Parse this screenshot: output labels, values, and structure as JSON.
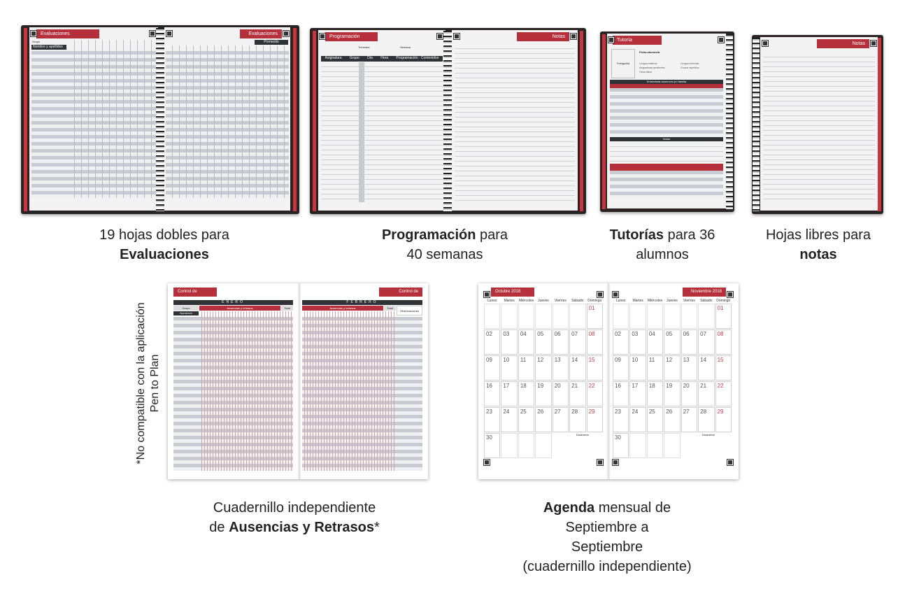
{
  "products": [
    {
      "tab_left": "Evaluaciones",
      "tab_right": "Evaluaciones",
      "sub_headers": [
        "Grupo",
        "Nombre y apellidos",
        "Promedio"
      ],
      "caption_line1": "19 hojas dobles para",
      "caption_bold": "Evaluaciones"
    },
    {
      "tab_left": "Programación",
      "tab_right": "Notas",
      "fields": [
        "Trimestre",
        "Semana"
      ],
      "columns": [
        "Asignatura",
        "Grupo",
        "Día",
        "Hora",
        "Programación · Contenidos"
      ],
      "caption_bold": "Programación",
      "caption_rest": " para",
      "caption_line2": "40 semanas"
    },
    {
      "tab": "Tutoría",
      "photo_label": "Fotografía",
      "name_label": "Ficha alumno/a",
      "fields": [
        "Lengua materna",
        "Lengua vehicular",
        "Asignaturas pendientes",
        "Cursos repetidos",
        "Otros datos"
      ],
      "bar_title": "Entrevistas alumno/a y/o familia",
      "notes_bar": "Notas",
      "caption_bold": "Tutorías",
      "caption_rest": " para 36",
      "caption_line2": "alumnos"
    },
    {
      "tab": "Notas",
      "caption_line1": "Hojas libres para",
      "caption_bold": "notas"
    },
    {
      "tab_left": "Control de Asistencia",
      "tab_right": "Control de Asistencia",
      "month_left": "ENERO",
      "month_right": "FEBRERO",
      "group_label": "Grupo",
      "name_label": "Nombre/a",
      "absences_label": "Ausencias y retrasos",
      "total_label": "Total",
      "obs_label": "Observaciones",
      "caption_line1": "Cuadernillo independiente",
      "caption_pre": "de ",
      "caption_bold": "Ausencias y Retrasos",
      "caption_post": "*"
    },
    {
      "tab_left": "Octubre 2018",
      "tab_right": "Noviembre 2018",
      "minical_title": "Diciembre",
      "days": [
        "Lunes",
        "Martes",
        "Miércoles",
        "Jueves",
        "Viernes",
        "Sábado",
        "Domingo"
      ],
      "dates": [
        "",
        "",
        "",
        "",
        "",
        "",
        "01",
        "02",
        "03",
        "04",
        "05",
        "06",
        "07",
        "08",
        "09",
        "10",
        "11",
        "12",
        "13",
        "14",
        "15",
        "16",
        "17",
        "18",
        "19",
        "20",
        "21",
        "22",
        "23",
        "24",
        "25",
        "26",
        "27",
        "28",
        "29",
        "30",
        "",
        "",
        "",
        "",
        "",
        ""
      ],
      "caption_bold": "Agenda",
      "caption_rest": " mensual de",
      "caption_line2": "Septiembre a",
      "caption_line3": "Septiembre",
      "caption_line4": "(cuadernillo independiente)"
    }
  ],
  "note": "*No compatible con la aplicación",
  "note_line2": "Pen to Plan",
  "colors": {
    "accent": "#b5303a",
    "dark": "#2f3236",
    "cover": "#2a2324"
  }
}
